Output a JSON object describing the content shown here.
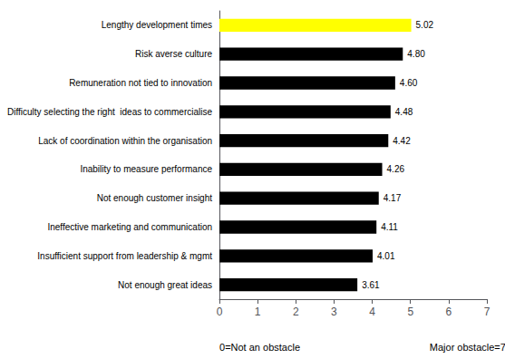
{
  "chart_data": {
    "type": "bar",
    "orientation": "horizontal",
    "categories": [
      "Not enough great ideas",
      "Insufficient support from leadership & mgmt",
      "Ineffective marketing and communication",
      "Not enough customer insight",
      "Inability to measure performance",
      "Lack of coordination within the organisation",
      "Difficulty selecting the right  ideas to commercialise",
      "Remuneration not tied to innovation",
      "Risk averse culture",
      "Lengthy development times"
    ],
    "values": [
      3.61,
      4.01,
      4.11,
      4.17,
      4.26,
      4.42,
      4.48,
      4.6,
      4.8,
      5.02
    ],
    "value_labels": [
      "3.61",
      "4.01",
      "4.11",
      "4.17",
      "4.26",
      "4.42",
      "4.48",
      "4.60",
      "4.80",
      "5.02"
    ],
    "colors": [
      "#000000",
      "#000000",
      "#000000",
      "#000000",
      "#000000",
      "#000000",
      "#000000",
      "#000000",
      "#000000",
      "#ffff00"
    ],
    "data_labels": true,
    "xlim": [
      0,
      7
    ],
    "xticks": [
      0,
      1,
      2,
      3,
      4,
      5,
      6,
      7
    ],
    "annotations": [
      "0=Not an obstacle",
      "Major obstacle=7"
    ],
    "grid": false
  }
}
